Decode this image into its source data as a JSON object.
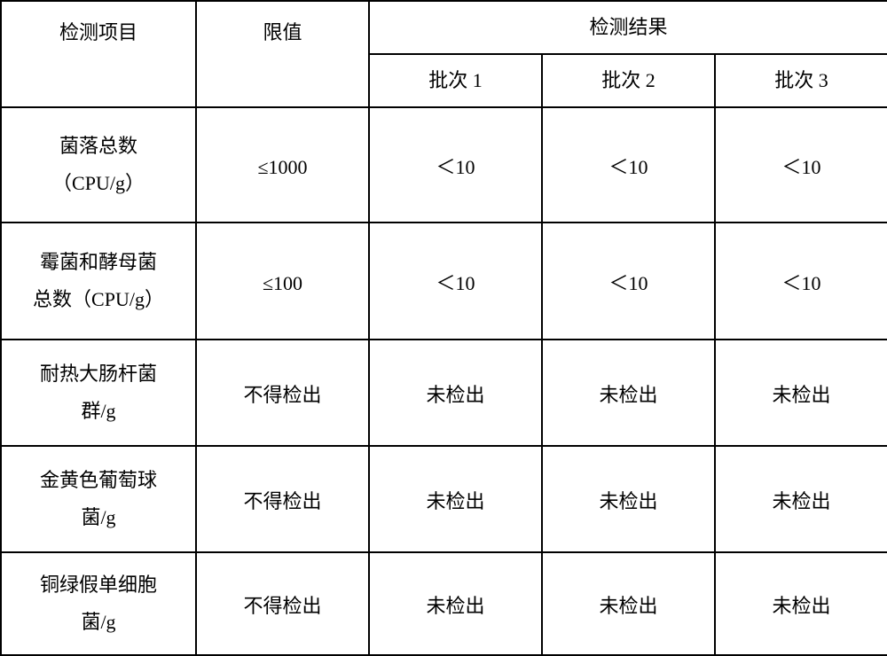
{
  "headers": {
    "item": "检测项目",
    "limit": "限值",
    "result_group": "检测结果",
    "batch1": "批次 1",
    "batch2": "批次 2",
    "batch3": "批次 3"
  },
  "rows": [
    {
      "item_line1": "菌落总数",
      "item_line2": "（CPU/g）",
      "limit": "≤1000",
      "b1": "＜10",
      "b2": "＜10",
      "b3": "＜10"
    },
    {
      "item_line1": "霉菌和酵母菌",
      "item_line2": "总数（CPU/g）",
      "limit": "≤100",
      "b1": "＜10",
      "b2": "＜10",
      "b3": "＜10"
    },
    {
      "item_line1": "耐热大肠杆菌",
      "item_line2": "群/g",
      "limit": "不得检出",
      "b1": "未检出",
      "b2": "未检出",
      "b3": "未检出"
    },
    {
      "item_line1": "金黄色葡萄球",
      "item_line2": "菌/g",
      "limit": "不得检出",
      "b1": "未检出",
      "b2": "未检出",
      "b3": "未检出"
    },
    {
      "item_line1": "铜绿假单细胞",
      "item_line2": "菌/g",
      "limit": "不得检出",
      "b1": "未检出",
      "b2": "未检出",
      "b3": "未检出"
    }
  ]
}
